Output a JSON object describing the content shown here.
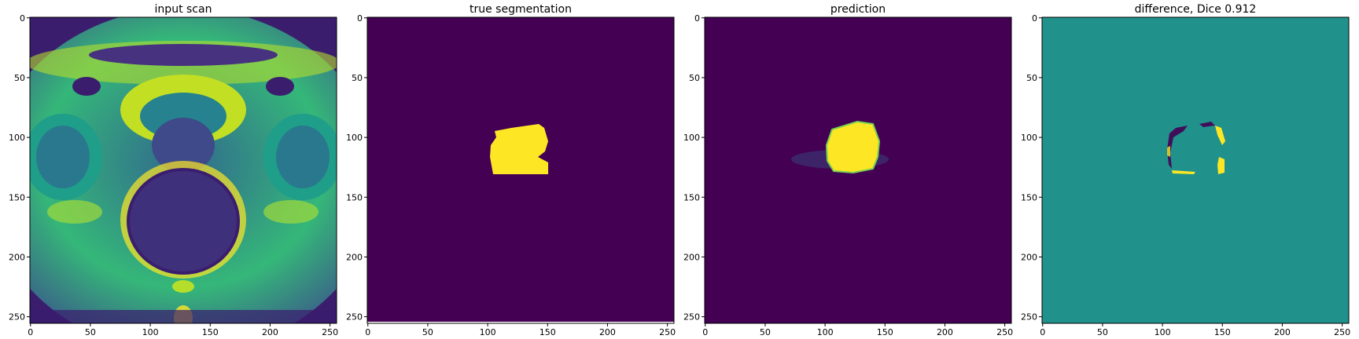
{
  "chart_data": [
    {
      "type": "heatmap",
      "title": "input scan",
      "content": "grayscale MRI pelvis scan rendered with viridis colormap",
      "xlim": [
        0,
        255
      ],
      "ylim": [
        255,
        0
      ],
      "xticks": [
        0,
        50,
        100,
        150,
        200,
        250
      ],
      "yticks": [
        0,
        50,
        100,
        150,
        200,
        250
      ],
      "background": "#3b1d6e"
    },
    {
      "type": "heatmap",
      "title": "true segmentation",
      "content": "binary mask",
      "xlim": [
        0,
        255
      ],
      "ylim": [
        255,
        0
      ],
      "xticks": [
        0,
        50,
        100,
        150,
        200,
        250
      ],
      "yticks": [
        0,
        50,
        100,
        150,
        200,
        250
      ],
      "background": "#440154",
      "foreground": "#fde725",
      "region_bbox": {
        "x": [
          103,
          151
        ],
        "y": [
          88,
          130
        ]
      }
    },
    {
      "type": "heatmap",
      "title": "prediction",
      "content": "predicted mask",
      "xlim": [
        0,
        255
      ],
      "ylim": [
        255,
        0
      ],
      "xticks": [
        0,
        50,
        100,
        150,
        200,
        250
      ],
      "yticks": [
        0,
        50,
        100,
        150,
        200,
        250
      ],
      "background": "#440154",
      "foreground": "#fde725",
      "region_bbox": {
        "x": [
          100,
          145
        ],
        "y": [
          88,
          130
        ]
      }
    },
    {
      "type": "heatmap",
      "title": "difference, Dice 0.912",
      "content": "difference map (truth minus prediction)",
      "xlim": [
        0,
        255
      ],
      "ylim": [
        255,
        0
      ],
      "xticks": [
        0,
        50,
        100,
        150,
        200,
        250
      ],
      "yticks": [
        0,
        50,
        100,
        150,
        200,
        250
      ],
      "background": "#21918c",
      "positive": "#fde725",
      "negative": "#440154"
    }
  ]
}
